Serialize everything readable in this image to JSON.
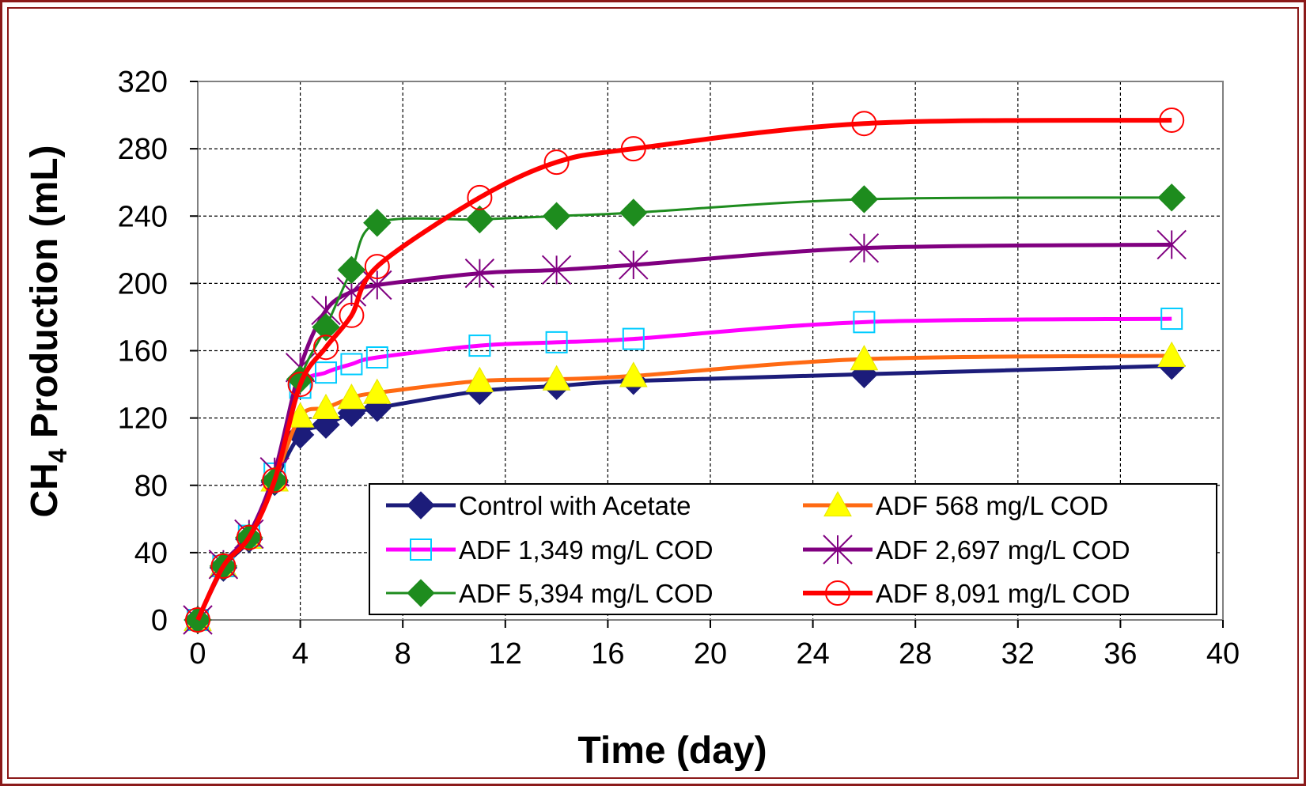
{
  "chart_data": {
    "type": "line",
    "xlabel": "Time (day)",
    "ylabel_main": "CH",
    "ylabel_sub": "4",
    "ylabel_rest": " Production (mL)",
    "xlim": [
      0,
      40
    ],
    "ylim": [
      0,
      320
    ],
    "x_ticks": [
      "0",
      "4",
      "8",
      "12",
      "16",
      "20",
      "24",
      "28",
      "32",
      "36",
      "40"
    ],
    "y_ticks": [
      "0",
      "40",
      "80",
      "120",
      "160",
      "200",
      "240",
      "280",
      "320"
    ],
    "grid": true,
    "legend_position": "bottom-right",
    "series": [
      {
        "name": "Control with Acetate",
        "color": "#1c1c7a",
        "line_width": 5,
        "marker": "diamond-filled",
        "marker_color": "#1c1c7a",
        "x": [
          0,
          1,
          2,
          3,
          4,
          5,
          6,
          7,
          11,
          14,
          17,
          26,
          38
        ],
        "y": [
          0,
          31,
          48,
          82,
          110,
          116,
          123,
          126,
          136,
          139,
          142,
          146,
          151
        ]
      },
      {
        "name": "ADF 568 mg/L COD",
        "color": "#ff6a13",
        "line_width": 5,
        "marker": "triangle-filled",
        "marker_color": "#ffff00",
        "x": [
          0,
          1,
          2,
          3,
          4,
          5,
          6,
          7,
          11,
          14,
          17,
          26,
          38
        ],
        "y": [
          0,
          32,
          49,
          83,
          121,
          126,
          132,
          135,
          142,
          143,
          145,
          155,
          157
        ]
      },
      {
        "name": "ADF 1,349 mg/L COD",
        "color": "#ff00ff",
        "line_width": 5,
        "marker": "square-open",
        "marker_color": "#00ccff",
        "x": [
          0,
          1,
          2,
          3,
          4,
          5,
          6,
          7,
          11,
          14,
          17,
          26,
          38
        ],
        "y": [
          0,
          32,
          50,
          87,
          138,
          147,
          152,
          156,
          163,
          165,
          167,
          177,
          179
        ]
      },
      {
        "name": "ADF 2,697 mg/L COD",
        "color": "#800080",
        "line_width": 5,
        "marker": "asterisk",
        "marker_color": "#800080",
        "x": [
          0,
          1,
          2,
          3,
          4,
          5,
          6,
          7,
          11,
          14,
          17,
          26,
          38
        ],
        "y": [
          0,
          33,
          51,
          88,
          150,
          184,
          195,
          199,
          206,
          208,
          211,
          221,
          223
        ]
      },
      {
        "name": "ADF 5,394 mg/L COD",
        "color": "#1e8c1e",
        "line_width": 3,
        "marker": "diamond-filled",
        "marker_color": "#1e8c1e",
        "x": [
          0,
          1,
          2,
          3,
          4,
          5,
          6,
          7,
          11,
          14,
          17,
          26,
          38
        ],
        "y": [
          0,
          32,
          49,
          83,
          143,
          174,
          208,
          236,
          238,
          240,
          242,
          250,
          251
        ]
      },
      {
        "name": "ADF 8,091 mg/L COD",
        "color": "#ff0000",
        "line_width": 6,
        "marker": "circle-open",
        "marker_color": "#ff0000",
        "x": [
          0,
          1,
          2,
          3,
          4,
          5,
          6,
          7,
          11,
          14,
          17,
          26,
          38
        ],
        "y": [
          0,
          32,
          49,
          83,
          140,
          162,
          181,
          210,
          251,
          272,
          280,
          295,
          297
        ]
      }
    ]
  }
}
